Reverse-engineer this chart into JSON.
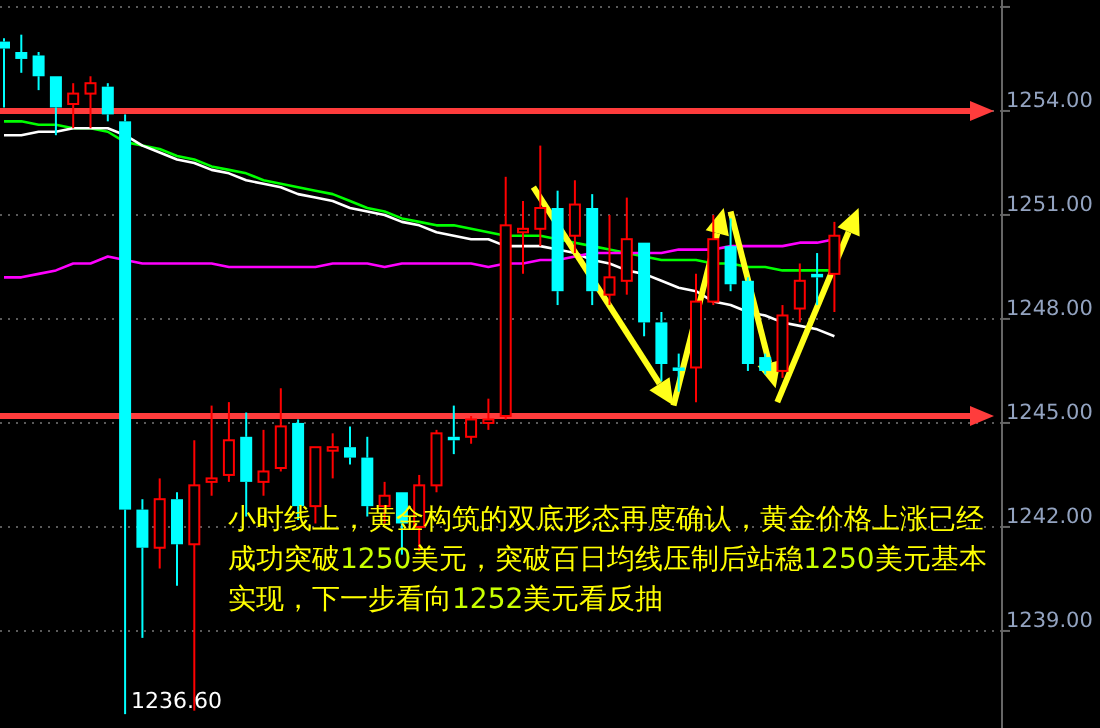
{
  "chart_data": {
    "type": "candlestick",
    "categories": [
      null,
      null,
      null,
      null,
      null,
      null,
      null,
      null,
      null,
      null,
      null,
      null,
      null,
      null,
      null,
      null,
      null,
      null,
      null,
      null,
      null,
      null,
      null,
      null,
      null,
      null,
      null,
      null,
      null,
      null,
      null,
      null,
      null,
      null,
      null,
      null,
      null,
      null,
      null,
      null,
      null,
      null,
      null,
      null,
      null,
      null,
      null,
      null,
      null
    ],
    "ohlc": [
      [
        1256.0,
        1256.1,
        1254.1,
        1255.8
      ],
      [
        1255.7,
        1256.2,
        1255.1,
        1255.5
      ],
      [
        1255.6,
        1255.7,
        1254.6,
        1255.0
      ],
      [
        1255.0,
        1255.0,
        1253.3,
        1254.1
      ],
      [
        1254.2,
        1254.8,
        1253.5,
        1254.5
      ],
      [
        1254.5,
        1255.0,
        1253.5,
        1254.8
      ],
      [
        1254.7,
        1254.8,
        1253.7,
        1253.9
      ],
      [
        1253.7,
        1253.9,
        1236.6,
        1242.5
      ],
      [
        1242.5,
        1242.8,
        1238.8,
        1241.4
      ],
      [
        1241.4,
        1243.4,
        1240.8,
        1242.8
      ],
      [
        1242.8,
        1243.0,
        1240.3,
        1241.5
      ],
      [
        1241.5,
        1244.5,
        1236.7,
        1243.2
      ],
      [
        1243.3,
        1245.5,
        1242.9,
        1243.4
      ],
      [
        1243.5,
        1245.6,
        1243.3,
        1244.5
      ],
      [
        1244.6,
        1245.3,
        1242.3,
        1243.3
      ],
      [
        1243.3,
        1244.8,
        1242.9,
        1243.6
      ],
      [
        1243.7,
        1246.0,
        1243.6,
        1244.9
      ],
      [
        1245.0,
        1245.1,
        1242.2,
        1242.6
      ],
      [
        1242.6,
        1244.3,
        1242.1,
        1244.3
      ],
      [
        1244.2,
        1244.7,
        1243.4,
        1244.3
      ],
      [
        1244.3,
        1244.9,
        1243.8,
        1244.0
      ],
      [
        1244.0,
        1244.6,
        1242.3,
        1242.6
      ],
      [
        1242.6,
        1243.3,
        1242.1,
        1242.9
      ],
      [
        1243.0,
        1243.0,
        1241.2,
        1242.1
      ],
      [
        1242.0,
        1243.5,
        1241.3,
        1243.2
      ],
      [
        1243.2,
        1244.8,
        1243.0,
        1244.7
      ],
      [
        1244.6,
        1245.5,
        1244.1,
        1244.5
      ],
      [
        1244.6,
        1245.2,
        1244.4,
        1245.1
      ],
      [
        1245.0,
        1245.7,
        1244.8,
        1245.1
      ],
      [
        1245.2,
        1252.1,
        1245.1,
        1250.7
      ],
      [
        1250.5,
        1251.4,
        1249.3,
        1250.6
      ],
      [
        1250.6,
        1253.0,
        1250.1,
        1251.2
      ],
      [
        1251.2,
        1251.7,
        1248.4,
        1248.8
      ],
      [
        1250.4,
        1252.0,
        1249.9,
        1251.3
      ],
      [
        1251.2,
        1251.6,
        1248.4,
        1248.8
      ],
      [
        1248.7,
        1251.0,
        1248.4,
        1249.2
      ],
      [
        1249.1,
        1251.5,
        1248.7,
        1250.3
      ],
      [
        1250.2,
        1250.2,
        1247.5,
        1247.9
      ],
      [
        1247.9,
        1248.2,
        1246.2,
        1246.7
      ],
      [
        1246.6,
        1247.0,
        1245.9,
        1246.5
      ],
      [
        1246.6,
        1249.3,
        1245.6,
        1248.5
      ],
      [
        1248.5,
        1251.0,
        1248.4,
        1250.3
      ],
      [
        1250.1,
        1250.9,
        1248.8,
        1249.0
      ],
      [
        1249.1,
        1249.2,
        1246.5,
        1246.7
      ],
      [
        1246.9,
        1247.0,
        1246.4,
        1246.5
      ],
      [
        1246.5,
        1248.4,
        1246.3,
        1248.1
      ],
      [
        1248.3,
        1249.6,
        1247.9,
        1249.1
      ],
      [
        1249.3,
        1249.9,
        1248.4,
        1249.2
      ],
      [
        1249.3,
        1250.8,
        1248.2,
        1250.4
      ]
    ],
    "colors": [
      "#00ffff",
      "#00ffff",
      "#00ffff",
      "#00ffff",
      "#ff0000",
      "#ff0000",
      "#00ffff",
      "#00ffff",
      "#00ffff",
      "#ff0000",
      "#00ffff",
      "#ff0000",
      "#ff0000",
      "#ff0000",
      "#00ffff",
      "#ff0000",
      "#ff0000",
      "#00ffff",
      "#ff0000",
      "#ff0000",
      "#00ffff",
      "#00ffff",
      "#ff0000",
      "#00ffff",
      "#ff0000",
      "#ff0000",
      "#00ffff",
      "#ff0000",
      "#ff0000",
      "#ff0000",
      "#ff0000",
      "#ff0000",
      "#00ffff",
      "#ff0000",
      "#00ffff",
      "#ff0000",
      "#ff0000",
      "#00ffff",
      "#00ffff",
      "#00ffff",
      "#ff0000",
      "#ff0000",
      "#00ffff",
      "#00ffff",
      "#00ffff",
      "#ff0000",
      "#ff0000",
      "#00ffff",
      "#ff0000"
    ],
    "series": [
      {
        "type": "line",
        "color": "#00ff00",
        "values": [
          1253.7,
          1253.7,
          1253.6,
          1253.6,
          1253.5,
          1253.5,
          1253.4,
          1253.1,
          1253.0,
          1252.9,
          1252.7,
          1252.6,
          1252.4,
          1252.3,
          1252.2,
          1252.0,
          1251.9,
          1251.8,
          1251.7,
          1251.6,
          1251.4,
          1251.2,
          1251.1,
          1250.9,
          1250.8,
          1250.7,
          1250.7,
          1250.6,
          1250.5,
          1250.4,
          1250.4,
          1250.4,
          1250.3,
          1250.2,
          1250.1,
          1250.0,
          1249.9,
          1249.8,
          1249.7,
          1249.7,
          1249.7,
          1249.6,
          1249.6,
          1249.5,
          1249.5,
          1249.4,
          1249.4,
          1249.4,
          1249.4
        ]
      },
      {
        "type": "line",
        "color": "#ffffff",
        "values": [
          1253.3,
          1253.3,
          1253.4,
          1253.4,
          1253.5,
          1253.5,
          1253.5,
          1253.3,
          1253.0,
          1252.8,
          1252.6,
          1252.5,
          1252.3,
          1252.2,
          1252.0,
          1251.9,
          1251.8,
          1251.6,
          1251.5,
          1251.4,
          1251.2,
          1251.1,
          1251.0,
          1250.8,
          1250.7,
          1250.5,
          1250.4,
          1250.3,
          1250.3,
          1250.1,
          1250.1,
          1250.1,
          1250.0,
          1249.9,
          1249.7,
          1249.6,
          1249.4,
          1249.3,
          1249.1,
          1248.9,
          1248.8,
          1248.5,
          1248.4,
          1248.2,
          1248.1,
          1247.9,
          1247.8,
          1247.7,
          1247.5
        ]
      },
      {
        "type": "line",
        "color": "#ff00ff",
        "values": [
          1249.2,
          1249.2,
          1249.3,
          1249.4,
          1249.6,
          1249.6,
          1249.8,
          1249.7,
          1249.6,
          1249.6,
          1249.6,
          1249.6,
          1249.6,
          1249.5,
          1249.5,
          1249.5,
          1249.5,
          1249.5,
          1249.5,
          1249.6,
          1249.6,
          1249.6,
          1249.5,
          1249.6,
          1249.6,
          1249.6,
          1249.6,
          1249.6,
          1249.5,
          1249.6,
          1249.6,
          1249.7,
          1249.7,
          1249.8,
          1249.9,
          1249.9,
          1249.9,
          1249.9,
          1249.9,
          1250.0,
          1250.0,
          1250.0,
          1250.1,
          1250.1,
          1250.1,
          1250.1,
          1250.2,
          1250.2,
          1250.3
        ]
      }
    ],
    "ylim": [
      1236.2,
      1257.2
    ],
    "yticks": [
      {
        "value": 1239,
        "label": "1239.00"
      },
      {
        "value": 1242,
        "label": "1242.00"
      },
      {
        "value": 1245,
        "label": "1245.00"
      },
      {
        "value": 1248,
        "label": "1248.00"
      },
      {
        "value": 1251,
        "label": "1251.00"
      },
      {
        "value": 1254,
        "label": "1254.00"
      },
      {
        "value": 1257,
        "label": null
      }
    ],
    "grid": "y",
    "ref_lines": [
      {
        "axis": "y",
        "value": 1254,
        "color": "#ff3c3c"
      },
      {
        "axis": "y",
        "value": 1245.2,
        "color": "#ff3c3c"
      }
    ],
    "annotations": [
      "1236.60",
      "小时线上，黄金构筑的双底形态再度确认，黄金价格上涨已经成功突破1250美元，突破百日均线压制后站稳1250美元基本实现，下一步看向1252美元看反抽"
    ]
  }
}
